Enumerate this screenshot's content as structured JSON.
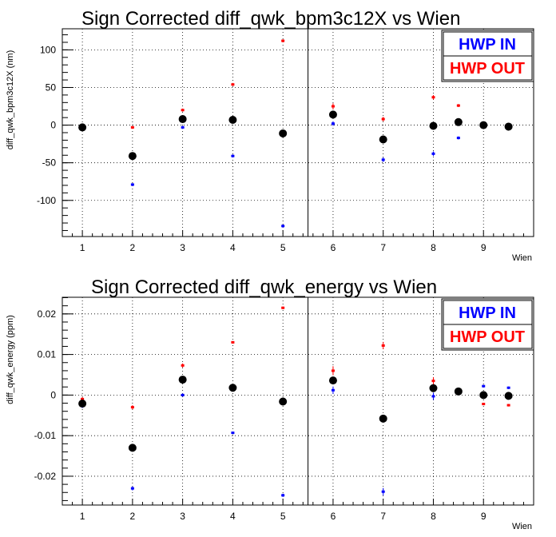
{
  "chart_data": [
    {
      "type": "scatter",
      "title": "Sign Corrected diff_qwk_bpm3c12X vs Wien",
      "xlabel": "Wien",
      "ylabel": "diff_qwk_bpm3c12X (nm)",
      "xlim": [
        0.6,
        10.0
      ],
      "ylim": [
        -148,
        128
      ],
      "xticks": [
        1,
        2,
        3,
        4,
        5,
        6,
        7,
        8,
        9
      ],
      "yticks": [
        100,
        50,
        0,
        -50,
        -100
      ],
      "ytick_labels": [
        "100",
        "50",
        "0",
        "-50",
        "-100"
      ],
      "divider_x": 5.5,
      "grid": true,
      "legend": {
        "placement": "top-right",
        "entries": [
          "HWP IN",
          "HWP OUT"
        ]
      },
      "series": [
        {
          "name": "HWP IN",
          "color": "#0000ff",
          "points": [
            [
              1,
              -2
            ],
            [
              2,
              -79
            ],
            [
              3,
              -3
            ],
            [
              4,
              -41
            ],
            [
              5,
              -134
            ],
            [
              6,
              2
            ],
            [
              7,
              -46
            ],
            [
              8,
              -38
            ],
            [
              8.5,
              -17
            ],
            [
              9,
              0
            ],
            [
              9.5,
              0
            ]
          ],
          "errors": [
            2,
            2,
            2,
            2,
            2,
            3,
            3,
            3,
            2,
            2,
            2
          ]
        },
        {
          "name": "HWP OUT",
          "color": "#ff0000",
          "points": [
            [
              1,
              -4
            ],
            [
              2,
              -3
            ],
            [
              3,
              20
            ],
            [
              4,
              54
            ],
            [
              5,
              112
            ],
            [
              6,
              25
            ],
            [
              7,
              8
            ],
            [
              8,
              37
            ],
            [
              8.5,
              26
            ],
            [
              9,
              0
            ],
            [
              9.5,
              -3
            ]
          ],
          "errors": [
            2,
            2,
            2,
            2,
            2,
            4,
            3,
            3,
            2,
            2,
            2
          ]
        },
        {
          "name": "",
          "color": "#000000",
          "points": [
            [
              1,
              -3
            ],
            [
              2,
              -41
            ],
            [
              3,
              8
            ],
            [
              4,
              7
            ],
            [
              5,
              -11
            ],
            [
              6,
              14
            ],
            [
              7,
              -19
            ],
            [
              8,
              -1
            ],
            [
              8.5,
              4
            ],
            [
              9,
              0
            ],
            [
              9.5,
              -2
            ]
          ]
        }
      ]
    },
    {
      "type": "scatter",
      "title": "Sign Corrected diff_qwk_energy vs Wien",
      "xlabel": "Wien",
      "ylabel": "diff_qwk_energy (ppm)",
      "xlim": [
        0.6,
        10.0
      ],
      "ylim": [
        -0.0271,
        0.0241
      ],
      "xticks": [
        1,
        2,
        3,
        4,
        5,
        6,
        7,
        8,
        9
      ],
      "yticks": [
        0.02,
        0.01,
        0,
        -0.01,
        -0.02
      ],
      "ytick_labels": [
        "0.02",
        "0.01",
        "0",
        "-0.01",
        "-0.02"
      ],
      "divider_x": 5.5,
      "grid": true,
      "legend": {
        "placement": "top-right",
        "entries": [
          "HWP IN",
          "HWP OUT"
        ]
      },
      "series": [
        {
          "name": "HWP IN",
          "color": "#0000ff",
          "points": [
            [
              1,
              -0.0027
            ],
            [
              2,
              -0.023
            ],
            [
              3,
              0
            ],
            [
              4,
              -0.0093
            ],
            [
              5,
              -0.0247
            ],
            [
              6,
              0.0012
            ],
            [
              7,
              -0.0238
            ],
            [
              8,
              -0.0003
            ],
            [
              8.5,
              0.0005
            ],
            [
              9,
              0.0022
            ],
            [
              9.5,
              0.0018
            ]
          ],
          "errors": [
            0.0005,
            0.0005,
            0.0004,
            0.0003,
            0.0004,
            0.0009,
            0.0009,
            0.0009,
            0.0004,
            0.0003,
            0.0003
          ]
        },
        {
          "name": "HWP OUT",
          "color": "#ff0000",
          "points": [
            [
              1,
              -0.001
            ],
            [
              2,
              -0.003
            ],
            [
              3,
              0.0073
            ],
            [
              4,
              0.013
            ],
            [
              5,
              0.0215
            ],
            [
              6,
              0.006
            ],
            [
              7,
              0.0122
            ],
            [
              8,
              0.0035
            ],
            [
              8.5,
              0.0011
            ],
            [
              9,
              -0.0022
            ],
            [
              9.5,
              -0.0025
            ]
          ],
          "errors": [
            0.0005,
            0.0005,
            0.0005,
            0.0003,
            0.0003,
            0.0011,
            0.0009,
            0.0009,
            0.0004,
            0.0003,
            0.0003
          ]
        },
        {
          "name": "",
          "color": "#000000",
          "points": [
            [
              1,
              -0.0021
            ],
            [
              2,
              -0.013
            ],
            [
              3,
              0.0038
            ],
            [
              4,
              0.0018
            ],
            [
              5,
              -0.0016
            ],
            [
              6,
              0.0036
            ],
            [
              7,
              -0.0058
            ],
            [
              8,
              0.0017
            ],
            [
              8.5,
              0.0009
            ],
            [
              9,
              0
            ],
            [
              9.5,
              -0.0002
            ]
          ]
        }
      ]
    }
  ]
}
